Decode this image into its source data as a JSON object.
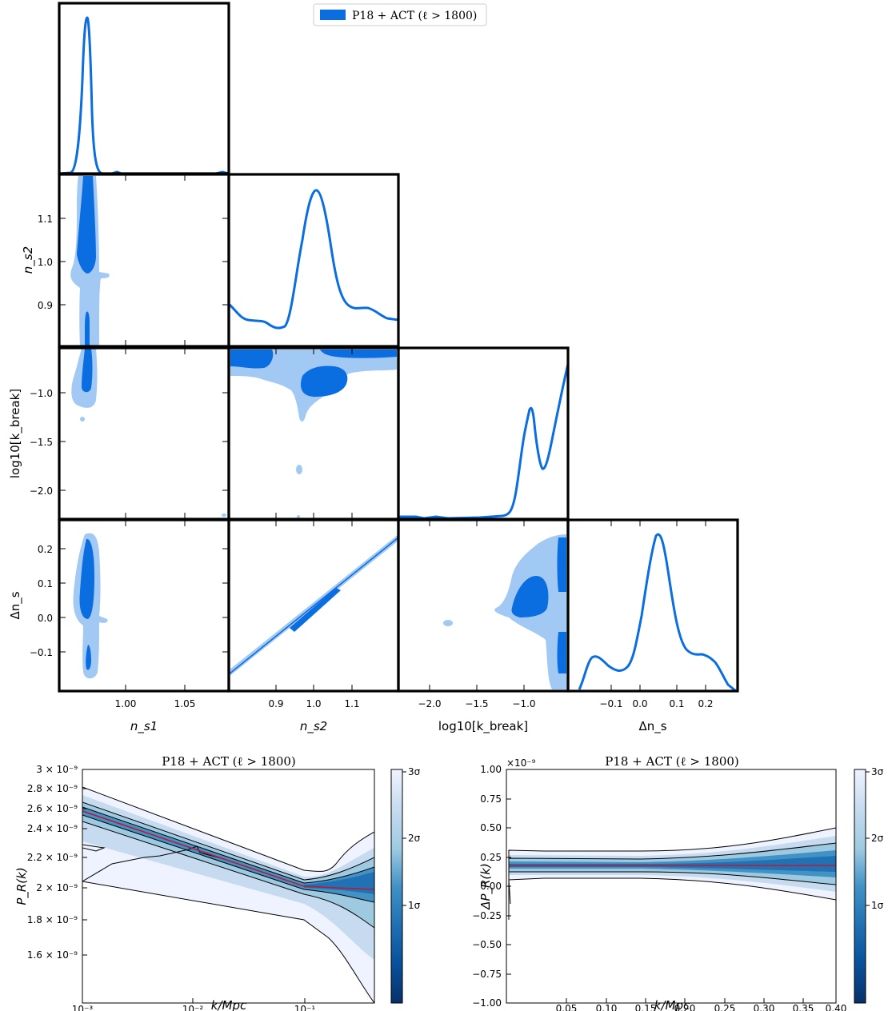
{
  "colors": {
    "main": "#0a6de0",
    "light": "#a2c8f4",
    "red": "#c0182e"
  },
  "legend": {
    "label": "P18 + ACT (ℓ > 1800)"
  },
  "corner": {
    "labels": {
      "x": [
        "n_s1",
        "n_s2",
        "log10[k_break]",
        "Δn_s"
      ],
      "y": [
        "n_s2",
        "log10[k_break]",
        "Δn_s"
      ]
    },
    "x_ticks": [
      [
        "1.00",
        "1.05"
      ],
      [
        "0.9",
        "1.0",
        "1.1"
      ],
      [
        "−2.0",
        "−1.5",
        "−1.0"
      ],
      [
        "−0.1",
        "0.0",
        "0.1",
        "0.2"
      ]
    ],
    "y_ticks": [
      [
        "1.1",
        "1.0",
        "0.9"
      ],
      [
        "−1.0",
        "−1.5",
        "−2.0"
      ],
      [
        "0.2",
        "0.1",
        "0.0",
        "−0.1"
      ]
    ]
  },
  "bottom_left": {
    "title": "P18 + ACT (ℓ > 1800)",
    "ylabel": "P_R(k)",
    "xlabel": "k/Mpc",
    "y_ticks": [
      "3 × 10⁻⁹",
      "2.8 × 10⁻⁹",
      "2.6 × 10⁻⁹",
      "2.4 × 10⁻⁹",
      "2.2 × 10⁻⁹",
      "2 × 10⁻⁹",
      "1.8 × 10⁻⁹",
      "1.6 × 10⁻⁹"
    ],
    "x_ticks": [
      "10⁻³",
      "10⁻²",
      "10⁻¹"
    ]
  },
  "bottom_right": {
    "title": "P18 + ACT (ℓ > 1800)",
    "ylabel": "ΔP_R(k)",
    "xlabel": "k/Mpc",
    "offset": "×10⁻⁹",
    "y_ticks": [
      "1.00",
      "0.75",
      "0.50",
      "0.25",
      "0.00",
      "−0.25",
      "−0.50",
      "−0.75",
      "−1.00"
    ],
    "x_ticks": [
      "0.05",
      "0.10",
      "0.15",
      "0.20",
      "0.25",
      "0.30",
      "0.35",
      "0.40"
    ]
  },
  "colorbar": {
    "ticks": [
      "3σ",
      "2σ",
      "1σ"
    ]
  },
  "chart_data": [
    {
      "type": "line",
      "name": "n_s1 marginal",
      "x": [
        0.955,
        0.96,
        0.963,
        0.965,
        0.967,
        0.969,
        0.972,
        0.976,
        1.0,
        1.09
      ],
      "y": [
        0.0,
        0.03,
        0.3,
        0.8,
        1.0,
        0.75,
        0.2,
        0.02,
        0.0,
        0.0
      ],
      "xlim": [
        0.945,
        1.092
      ]
    },
    {
      "type": "line",
      "name": "n_s2 marginal",
      "x": [
        0.82,
        0.85,
        0.88,
        0.92,
        0.95,
        0.98,
        1.0,
        1.02,
        1.05,
        1.08,
        1.1,
        1.13,
        1.16,
        1.2
      ],
      "y": [
        0.18,
        0.12,
        0.08,
        0.05,
        0.1,
        0.55,
        0.88,
        0.78,
        0.3,
        0.18,
        0.15,
        0.15,
        0.12,
        0.1
      ],
      "xlim": [
        0.81,
        1.2
      ]
    },
    {
      "type": "line",
      "name": "log10[k_break] marginal",
      "x": [
        -2.25,
        -2.0,
        -1.7,
        -1.4,
        -1.2,
        -1.07,
        -1.0,
        -0.95,
        -0.9,
        -0.85,
        -0.8,
        -0.75,
        -0.68,
        -0.6
      ],
      "y": [
        0.0,
        0.0,
        0.0,
        0.01,
        0.05,
        0.3,
        0.65,
        0.42,
        0.31,
        0.38,
        0.5,
        0.62,
        0.8,
        0.95
      ],
      "xlim": [
        -2.25,
        -0.6
      ]
    },
    {
      "type": "line",
      "name": "Δn_s marginal",
      "x": [
        -0.2,
        -0.16,
        -0.12,
        -0.08,
        -0.05,
        -0.02,
        0.0,
        0.02,
        0.04,
        0.06,
        0.08,
        0.1,
        0.13,
        0.16,
        0.19,
        0.22,
        0.25
      ],
      "y": [
        0.0,
        0.2,
        0.21,
        0.17,
        0.14,
        0.18,
        0.3,
        0.65,
        0.88,
        0.65,
        0.3,
        0.17,
        0.15,
        0.13,
        0.12,
        0.06,
        0.0
      ],
      "xlim": [
        -0.2,
        0.27
      ]
    },
    {
      "type": "line",
      "name": "P_R(k) posterior mean",
      "x": [
        0.001,
        0.01,
        0.1,
        0.2,
        0.4
      ],
      "y": [
        2.41e-09,
        2.2e-09,
        2.02e-09,
        2e-09,
        1.99e-09
      ],
      "xscale": "log",
      "yscale": "log",
      "xlim": [
        0.001,
        0.4
      ],
      "ylim": [
        1.5e-09,
        3e-09
      ]
    },
    {
      "type": "line",
      "name": "ΔP_R(k) posterior mean",
      "x": [
        0.0,
        0.4
      ],
      "y": [
        0.0,
        0.0
      ],
      "xlim": [
        0.0,
        0.4
      ],
      "ylim": [
        -1.0,
        1.0
      ]
    }
  ]
}
